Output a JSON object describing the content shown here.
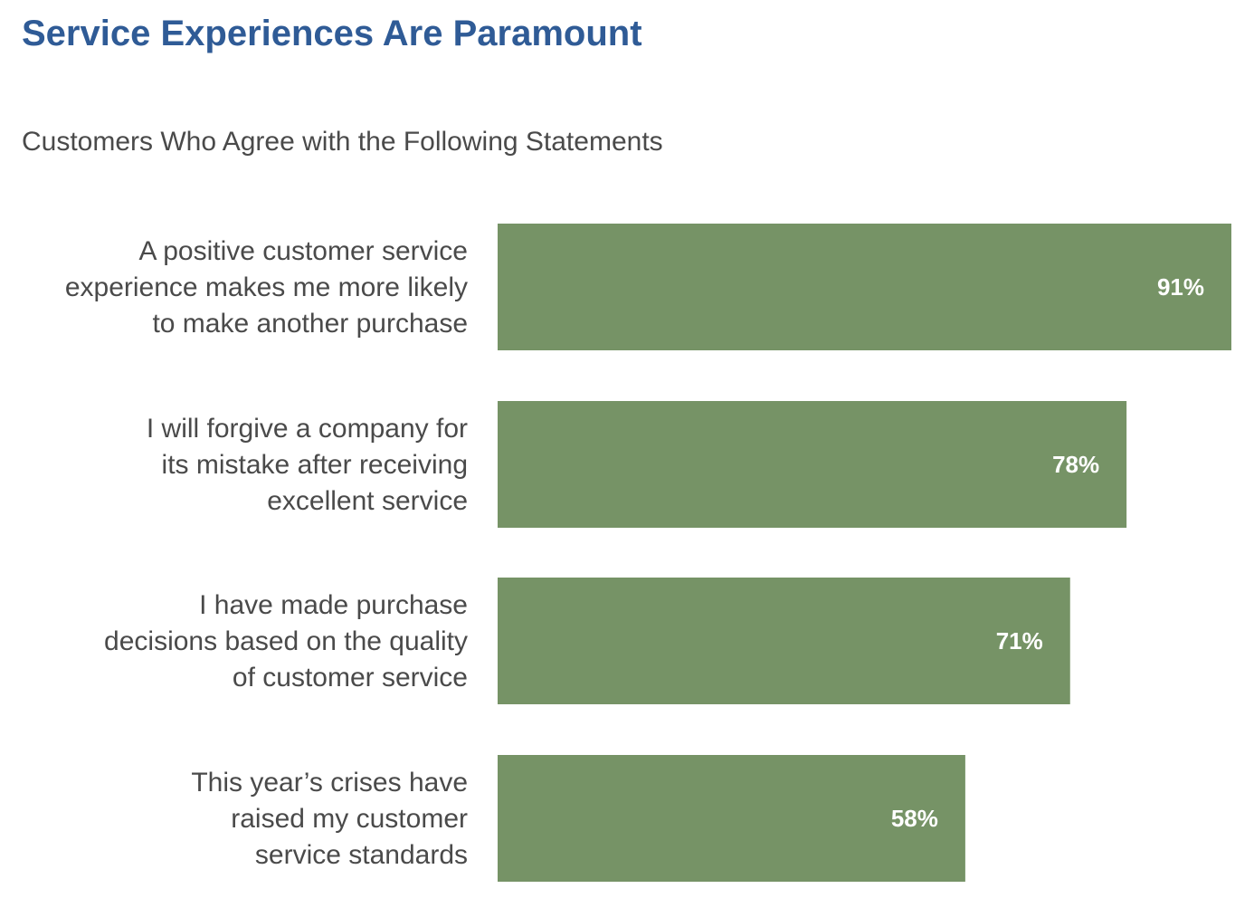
{
  "colors": {
    "title": "#2f5b96",
    "bar": "#769366",
    "label": "#4a4a4a",
    "value": "#ffffff"
  },
  "chart_data": {
    "type": "bar",
    "orientation": "horizontal",
    "title": "Service Experiences Are Paramount",
    "subtitle": "Customers Who Agree with the Following Statements",
    "categories": [
      [
        "A positive customer service",
        "experience makes me more likely",
        "to make another purchase"
      ],
      [
        "I will forgive a company for",
        "its mistake after receiving",
        "excellent service"
      ],
      [
        "I have made purchase",
        "decisions based on the quality",
        "of customer service"
      ],
      [
        "This year’s crises have",
        "raised my customer",
        "service standards"
      ]
    ],
    "values": [
      91,
      78,
      71,
      58
    ],
    "value_labels": [
      "91%",
      "78%",
      "71%",
      "58%"
    ],
    "xlim": [
      0,
      91
    ],
    "grid": false,
    "legend": "none"
  }
}
